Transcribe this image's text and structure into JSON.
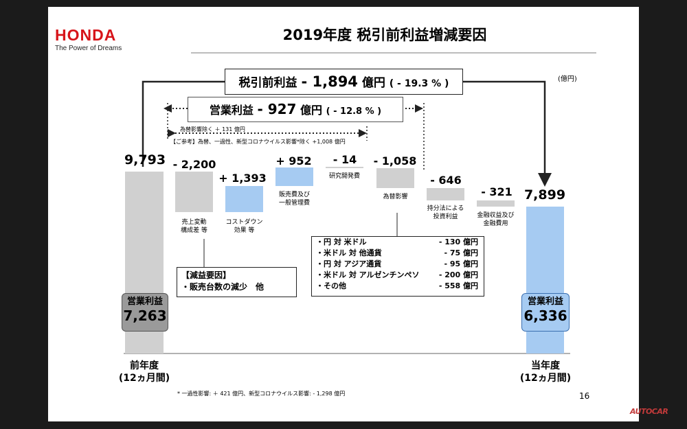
{
  "brand": {
    "logo": "HONDA",
    "tagline": "The Power of Dreams"
  },
  "title": "2019年度 税引前利益増減要因",
  "unit": "(億円)",
  "pretax": {
    "label": "税引前利益",
    "value": "- 1,894",
    "yen": "億円",
    "pct": "( - 19.3 % )"
  },
  "operating": {
    "label": "営業利益",
    "value": "- 927",
    "yen": "億円",
    "pct": "( - 12.8 % )"
  },
  "fx_excluded_note": "為替影響除く ＋ 131 億円",
  "reference_note": "【ご参考】為替、一過性、新型コロナウイルス影響*除く +1,008 億円",
  "start": {
    "value": "9,793",
    "badge_label": "営業利益",
    "badge_value": "7,263",
    "year": "前年度",
    "period": "(12ヵ月間)"
  },
  "end": {
    "value": "7,899",
    "badge_label": "営業利益",
    "badge_value": "6,336",
    "year": "当年度",
    "period": "(12ヵ月間)"
  },
  "steps": [
    {
      "value": "- 2,200",
      "label1": "売上変動",
      "label2": "構成差 等"
    },
    {
      "value": "+ 1,393",
      "label1": "コストダウン",
      "label2": "効果 等"
    },
    {
      "value": "+ 952",
      "label1": "販売費及び",
      "label2": "一般管理費"
    },
    {
      "value": "- 14",
      "label1": "研究開発費",
      "label2": ""
    },
    {
      "value": "- 1,058",
      "label1": "為替影響",
      "label2": ""
    },
    {
      "value": "- 646",
      "label1": "持分法による",
      "label2": "投資利益"
    },
    {
      "value": "- 321",
      "label1": "金融収益及び",
      "label2": "金融費用"
    }
  ],
  "decrease_factors": {
    "title": "【減益要因】",
    "item": "・販売台数の減少　他"
  },
  "fx_breakdown": [
    {
      "label": "・円 対 米ドル",
      "value": "- 130 億円"
    },
    {
      "label": "・米ドル 対 他通貨",
      "value": "- 75 億円"
    },
    {
      "label": "・円 対 アジア通貨",
      "value": "- 95 億円"
    },
    {
      "label": "・米ドル 対 アルゼンチンペソ",
      "value": "- 200 億円"
    },
    {
      "label": "・その他",
      "value": "- 558 億円"
    }
  ],
  "footnote": "* 一過性影響: ＋ 421 億円、新型コロナウイルス影響: - 1,298 億円",
  "page_number": "16",
  "watermark": "AUTOCAR",
  "colors": {
    "brand_red": "#d7141a",
    "decrease_gray": "#d0d0d0",
    "increase_blue": "#a6cbf2"
  }
}
